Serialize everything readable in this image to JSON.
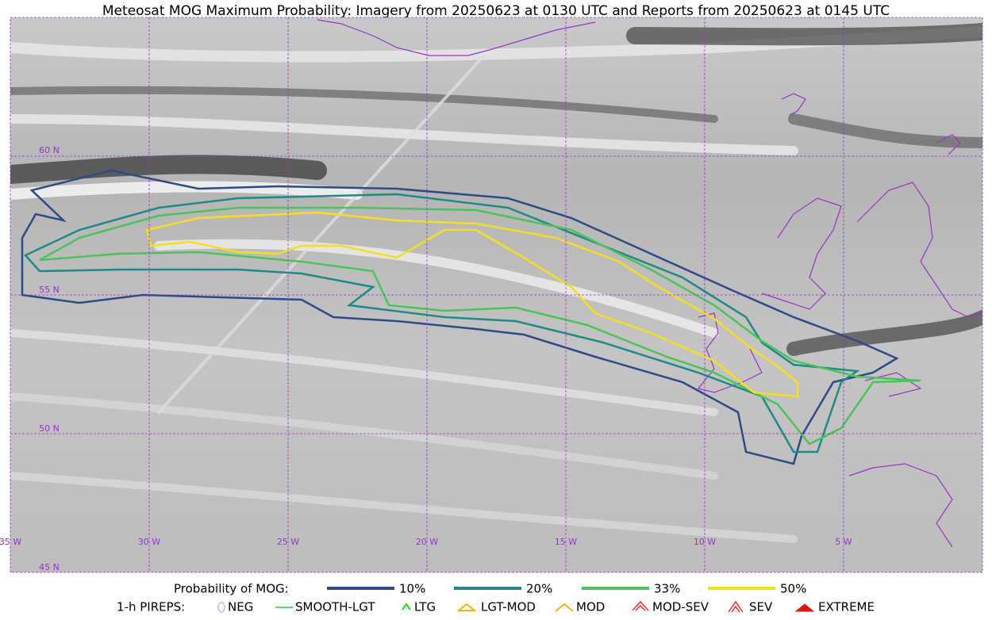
{
  "title": "Meteosat MOG Maximum Probability: Imagery from 20250623 at 0130 UTC and Reports from 20250623 at 0145 UTC",
  "lat_labels": [
    "60 N",
    "55 N",
    "50 N",
    "45 N"
  ],
  "lon_labels": [
    "35 W",
    "30 W",
    "25 W",
    "20 W",
    "15 W",
    "10 W",
    "5 W"
  ],
  "probability_legend": {
    "label": "Probability of MOG:",
    "items": [
      {
        "label": "10%",
        "color": "#2e4a87"
      },
      {
        "label": "20%",
        "color": "#1f8a87"
      },
      {
        "label": "33%",
        "color": "#4cc35a"
      },
      {
        "label": "50%",
        "color": "#f5de22"
      }
    ]
  },
  "pirep_legend": {
    "label": "1-h PIREPS:",
    "items": [
      {
        "label": "NEG",
        "color": "#c8c8f0"
      },
      {
        "label": "SMOOTH-LGT",
        "color": "#33cc33"
      },
      {
        "label": "LTG",
        "color": "#11dd11"
      },
      {
        "label": "LGT-MOD",
        "color": "#f5b01a"
      },
      {
        "label": "MOD",
        "color": "#f5b01a"
      },
      {
        "label": "MOD-SEV",
        "color": "#e83030"
      },
      {
        "label": "SEV",
        "color": "#e83030"
      },
      {
        "label": "EXTREME",
        "color": "#e81010"
      }
    ]
  }
}
